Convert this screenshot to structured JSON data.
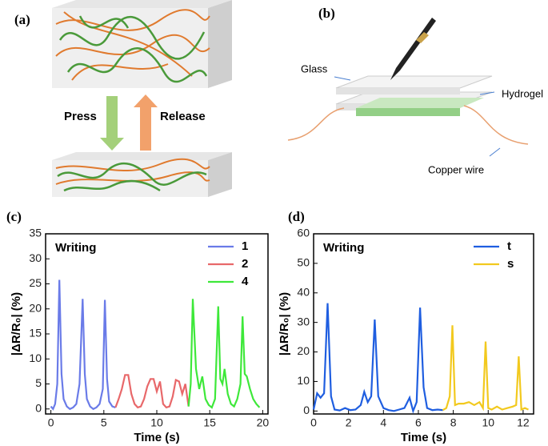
{
  "panels": {
    "a": {
      "label": "(a)",
      "press": "Press",
      "release": "Release"
    },
    "b": {
      "label": "(b)",
      "glass": "Glass",
      "hydrogel": "Hydrogel",
      "copper": "Copper wire"
    }
  },
  "chart_data": [
    {
      "type": "line",
      "label": "(c)",
      "annotation": "Writing",
      "x_label": "Time (s)",
      "y_label": "|ΔR/R₀| (%)",
      "xlim": [
        -0.5,
        20.5
      ],
      "xticks": [
        0,
        5,
        10,
        15,
        20
      ],
      "ylim": [
        -1,
        35
      ],
      "yticks": [
        0,
        5,
        10,
        15,
        20,
        25,
        30,
        35
      ],
      "legend": "upper right",
      "series": [
        {
          "name": "1",
          "color": "#6a7be8",
          "x": [
            0,
            0.2,
            0.4,
            0.6,
            0.8,
            1.0,
            1.2,
            1.5,
            1.8,
            2.1,
            2.4,
            2.7,
            3.0,
            3.2,
            3.4,
            3.7,
            4.0,
            4.3,
            4.6,
            4.9,
            5.1,
            5.3,
            5.5,
            5.8,
            6.1
          ],
          "values": [
            0.5,
            0,
            1,
            5,
            25.8,
            7,
            2,
            0.5,
            0,
            0.3,
            1,
            5,
            22,
            7,
            2,
            0.5,
            0,
            0.3,
            1,
            4,
            21.8,
            6,
            1.5,
            0.5,
            0.3
          ]
        },
        {
          "name": "2",
          "color": "#e8686a",
          "x": [
            6.1,
            6.4,
            6.7,
            7.0,
            7.3,
            7.6,
            7.9,
            8.2,
            8.5,
            8.8,
            9.1,
            9.4,
            9.7,
            10.0,
            10.3,
            10.6,
            10.9,
            11.2,
            11.5,
            11.8,
            12.1,
            12.4,
            12.7,
            13.0
          ],
          "values": [
            0.3,
            2,
            4,
            6.8,
            6.8,
            3,
            1,
            0.3,
            0.5,
            2,
            4.5,
            6,
            6,
            3.5,
            5.5,
            1,
            0.3,
            0.5,
            2.5,
            5.8,
            5.5,
            3,
            5,
            0.5
          ]
        },
        {
          "name": "4",
          "color": "#3ee83a",
          "x": [
            13.0,
            13.2,
            13.4,
            13.7,
            14.0,
            14.3,
            14.6,
            14.9,
            15.2,
            15.5,
            15.8,
            16.0,
            16.2,
            16.4,
            16.7,
            17.0,
            17.3,
            17.6,
            17.9,
            18.1,
            18.3,
            18.5,
            18.8,
            19.1,
            19.4,
            19.7
          ],
          "values": [
            0.5,
            5,
            22,
            8,
            4,
            6.5,
            2,
            0.8,
            0.3,
            2,
            20.5,
            6,
            5,
            8,
            3,
            1,
            0.5,
            2,
            5,
            18.5,
            7,
            6.5,
            4,
            2,
            1,
            0.3
          ]
        }
      ]
    },
    {
      "type": "line",
      "label": "(d)",
      "annotation": "Writing",
      "x_label": "Time (s)",
      "y_label": "|ΔR/R₀| (%)",
      "xlim": [
        0,
        12.6
      ],
      "xticks": [
        0,
        2,
        4,
        6,
        8,
        10,
        12
      ],
      "ylim": [
        -1,
        60
      ],
      "yticks": [
        0,
        10,
        20,
        30,
        40,
        50,
        60
      ],
      "legend": "upper right",
      "series": [
        {
          "name": "t",
          "color": "#1f5ee0",
          "x": [
            0,
            0.2,
            0.4,
            0.6,
            0.8,
            1.0,
            1.2,
            1.5,
            1.8,
            2.1,
            2.4,
            2.7,
            2.9,
            3.1,
            3.3,
            3.5,
            3.7,
            4.0,
            4.3,
            4.6,
            4.9,
            5.2,
            5.5,
            5.7,
            5.9,
            6.1,
            6.3,
            6.5,
            6.8,
            7.1,
            7.4
          ],
          "values": [
            0.5,
            6,
            4.5,
            6,
            36.5,
            5,
            0.5,
            0.2,
            1,
            0.3,
            0.5,
            2,
            6.5,
            3,
            5,
            31,
            5,
            1,
            0.3,
            0,
            0.5,
            1,
            4.5,
            0,
            3,
            35,
            8,
            1,
            0.3,
            0.5,
            0.3
          ]
        },
        {
          "name": "s",
          "color": "#f2c91e",
          "x": [
            7.4,
            7.6,
            7.8,
            7.95,
            8.1,
            8.3,
            8.6,
            8.9,
            9.2,
            9.5,
            9.7,
            9.85,
            10.0,
            10.2,
            10.5,
            10.8,
            11.1,
            11.4,
            11.6,
            11.75,
            11.9,
            12.1,
            12.3
          ],
          "values": [
            0.3,
            1,
            5,
            29,
            2,
            2.5,
            2.5,
            3,
            2,
            3,
            1,
            23.5,
            1,
            0.5,
            1.5,
            0.5,
            1,
            1.5,
            2,
            18.5,
            0.5,
            1,
            0.5
          ]
        }
      ]
    }
  ]
}
